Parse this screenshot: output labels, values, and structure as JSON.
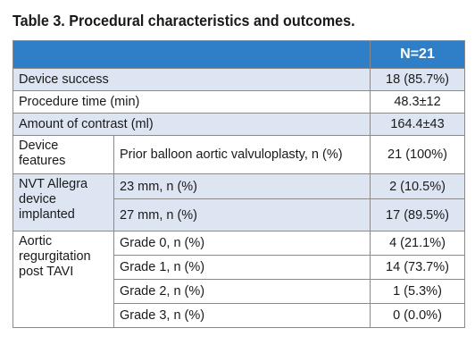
{
  "title": "Table 3. Procedural characteristics and outcomes.",
  "header": {
    "col_label": "",
    "n_label": "N=21"
  },
  "rows": {
    "device_success": {
      "label": "Device success",
      "value": "18 (85.7%)"
    },
    "procedure_time": {
      "label": "Procedure time (min)",
      "value": "48.3±12"
    },
    "contrast": {
      "label": "Amount of contrast (ml)",
      "value": "164.4±43"
    }
  },
  "groups": {
    "device_features": {
      "label": "Device features",
      "items": [
        {
          "label": "Prior balloon aortic valvuloplasty, n (%)",
          "value": "21 (100%)"
        }
      ]
    },
    "nvt_allegra": {
      "label": "NVT Allegra device implanted",
      "items": [
        {
          "label": "23 mm, n (%)",
          "value": "2 (10.5%)"
        },
        {
          "label": "27 mm, n (%)",
          "value": "17 (89.5%)"
        }
      ]
    },
    "aortic_regurgitation": {
      "label": "Aortic regurgitation post TAVI",
      "items": [
        {
          "label": "Grade 0, n (%)",
          "value": "4 (21.1%)"
        },
        {
          "label": "Grade 1, n (%)",
          "value": "14 (73.7%)"
        },
        {
          "label": "Grade 2, n (%)",
          "value": "1 (5.3%)"
        },
        {
          "label": "Grade 3, n (%)",
          "value": "0 (0.0%)"
        }
      ]
    }
  },
  "colors": {
    "header_blue": "#2f7fc8",
    "band_blue": "#dde5f3",
    "border": "#8a8a8a"
  }
}
